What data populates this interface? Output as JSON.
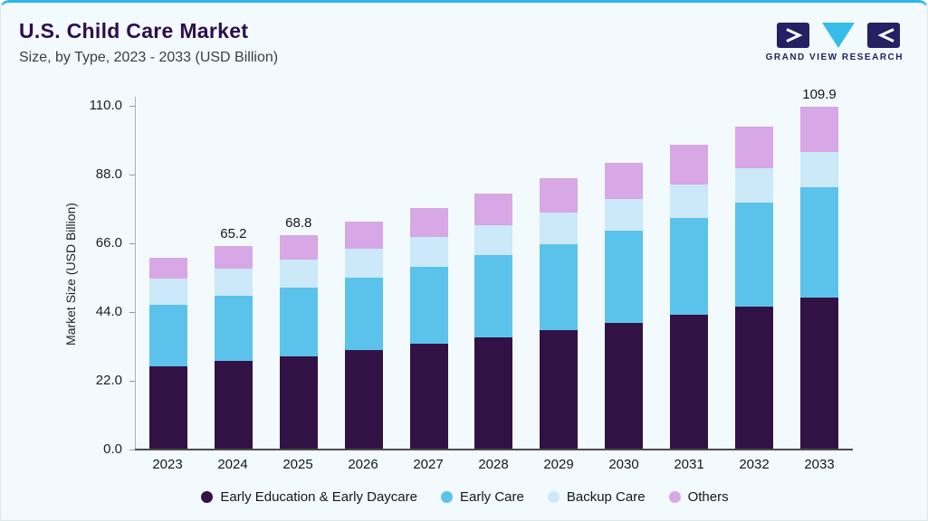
{
  "accent_color": "#29b9e8",
  "header": {
    "title": "U.S. Child Care Market",
    "subtitle": "Size, by Type, 2023 - 2033 (USD Billion)",
    "logo_text": "GRAND VIEW RESEARCH"
  },
  "chart_data": {
    "type": "bar",
    "stacked": true,
    "title": "U.S. Child Care Market Size, by Type, 2023 - 2033 (USD Billion)",
    "xlabel": "",
    "ylabel": "Market Size (USD Billion)",
    "ylim": [
      0,
      110
    ],
    "yticks": [
      "0.0",
      "22.0",
      "44.0",
      "66.0",
      "88.0",
      "110.0"
    ],
    "grid": false,
    "legend_position": "bottom",
    "categories": [
      "2023",
      "2024",
      "2025",
      "2026",
      "2027",
      "2028",
      "2029",
      "2030",
      "2031",
      "2032",
      "2033"
    ],
    "series": [
      {
        "name": "Early Education & Early Daycare",
        "color": "#321244",
        "values": [
          26.7,
          28.4,
          30.0,
          31.9,
          33.9,
          36.0,
          38.2,
          40.6,
          43.1,
          45.9,
          48.8
        ]
      },
      {
        "name": "Early Care",
        "color": "#5bc3eb",
        "values": [
          19.7,
          20.9,
          22.0,
          23.3,
          24.7,
          26.2,
          27.7,
          29.4,
          31.2,
          33.1,
          35.2
        ]
      },
      {
        "name": "Backup Care",
        "color": "#cbe9f8",
        "values": [
          8.3,
          8.6,
          8.9,
          9.2,
          9.5,
          9.8,
          10.1,
          10.4,
          10.7,
          11.0,
          11.3
        ]
      },
      {
        "name": "Others",
        "color": "#d7a7e6",
        "values": [
          6.8,
          7.3,
          7.9,
          8.5,
          9.2,
          9.9,
          10.8,
          11.6,
          12.6,
          13.6,
          14.6
        ]
      }
    ],
    "totals": [
      61.5,
      65.2,
      68.8,
      72.9,
      77.3,
      81.9,
      86.8,
      92.0,
      97.6,
      103.6,
      109.9
    ],
    "bar_value_labels": [
      "",
      "65.2",
      "68.8",
      "",
      "",
      "",
      "",
      "",
      "",
      "",
      "109.9"
    ]
  }
}
